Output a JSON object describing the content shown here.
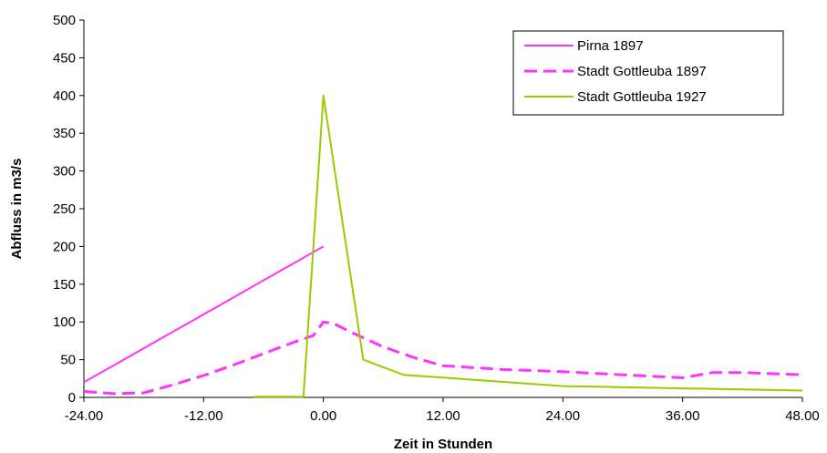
{
  "chart_data": {
    "type": "line",
    "title": "",
    "xlabel": "Zeit in Stunden",
    "ylabel": "Abfluss in m3/s",
    "xlim": [
      -24,
      48
    ],
    "ylim": [
      0,
      500
    ],
    "x_ticks": [
      -24,
      -12,
      0,
      12,
      24,
      36,
      48
    ],
    "x_tick_labels": [
      "-24.00",
      "-12.00",
      "0.00",
      "12.00",
      "24.00",
      "36.00",
      "48.00"
    ],
    "y_ticks": [
      0,
      50,
      100,
      150,
      200,
      250,
      300,
      350,
      400,
      450,
      500
    ],
    "y_tick_labels": [
      "0",
      "50",
      "100",
      "150",
      "200",
      "250",
      "300",
      "350",
      "400",
      "450",
      "500"
    ],
    "grid": false,
    "legend_position": "top-right",
    "series": [
      {
        "name": "Pirna 1897",
        "color": "#ff33ff",
        "dash": "solid",
        "x": [
          -24,
          0
        ],
        "y": [
          20,
          200
        ]
      },
      {
        "name": "Stadt Gottleuba 1897",
        "color": "#ff33ff",
        "dash": "dashed",
        "x": [
          -24,
          -21,
          -18,
          -15,
          -12,
          -9,
          -6,
          -3,
          -1,
          0,
          1,
          3,
          6,
          9,
          12,
          18,
          24,
          30,
          36,
          39,
          42,
          48
        ],
        "y": [
          8,
          5,
          6,
          17,
          29,
          43,
          58,
          73,
          82,
          100,
          98,
          85,
          67,
          53,
          42,
          37,
          34,
          30,
          26,
          33,
          33,
          30
        ]
      },
      {
        "name": "Stadt Gottleuba 1927",
        "color": "#99cc00",
        "dash": "solid",
        "x": [
          -7,
          -2,
          0,
          4,
          8,
          24,
          48
        ],
        "y": [
          1,
          1,
          400,
          50,
          30,
          15,
          9
        ]
      }
    ]
  }
}
